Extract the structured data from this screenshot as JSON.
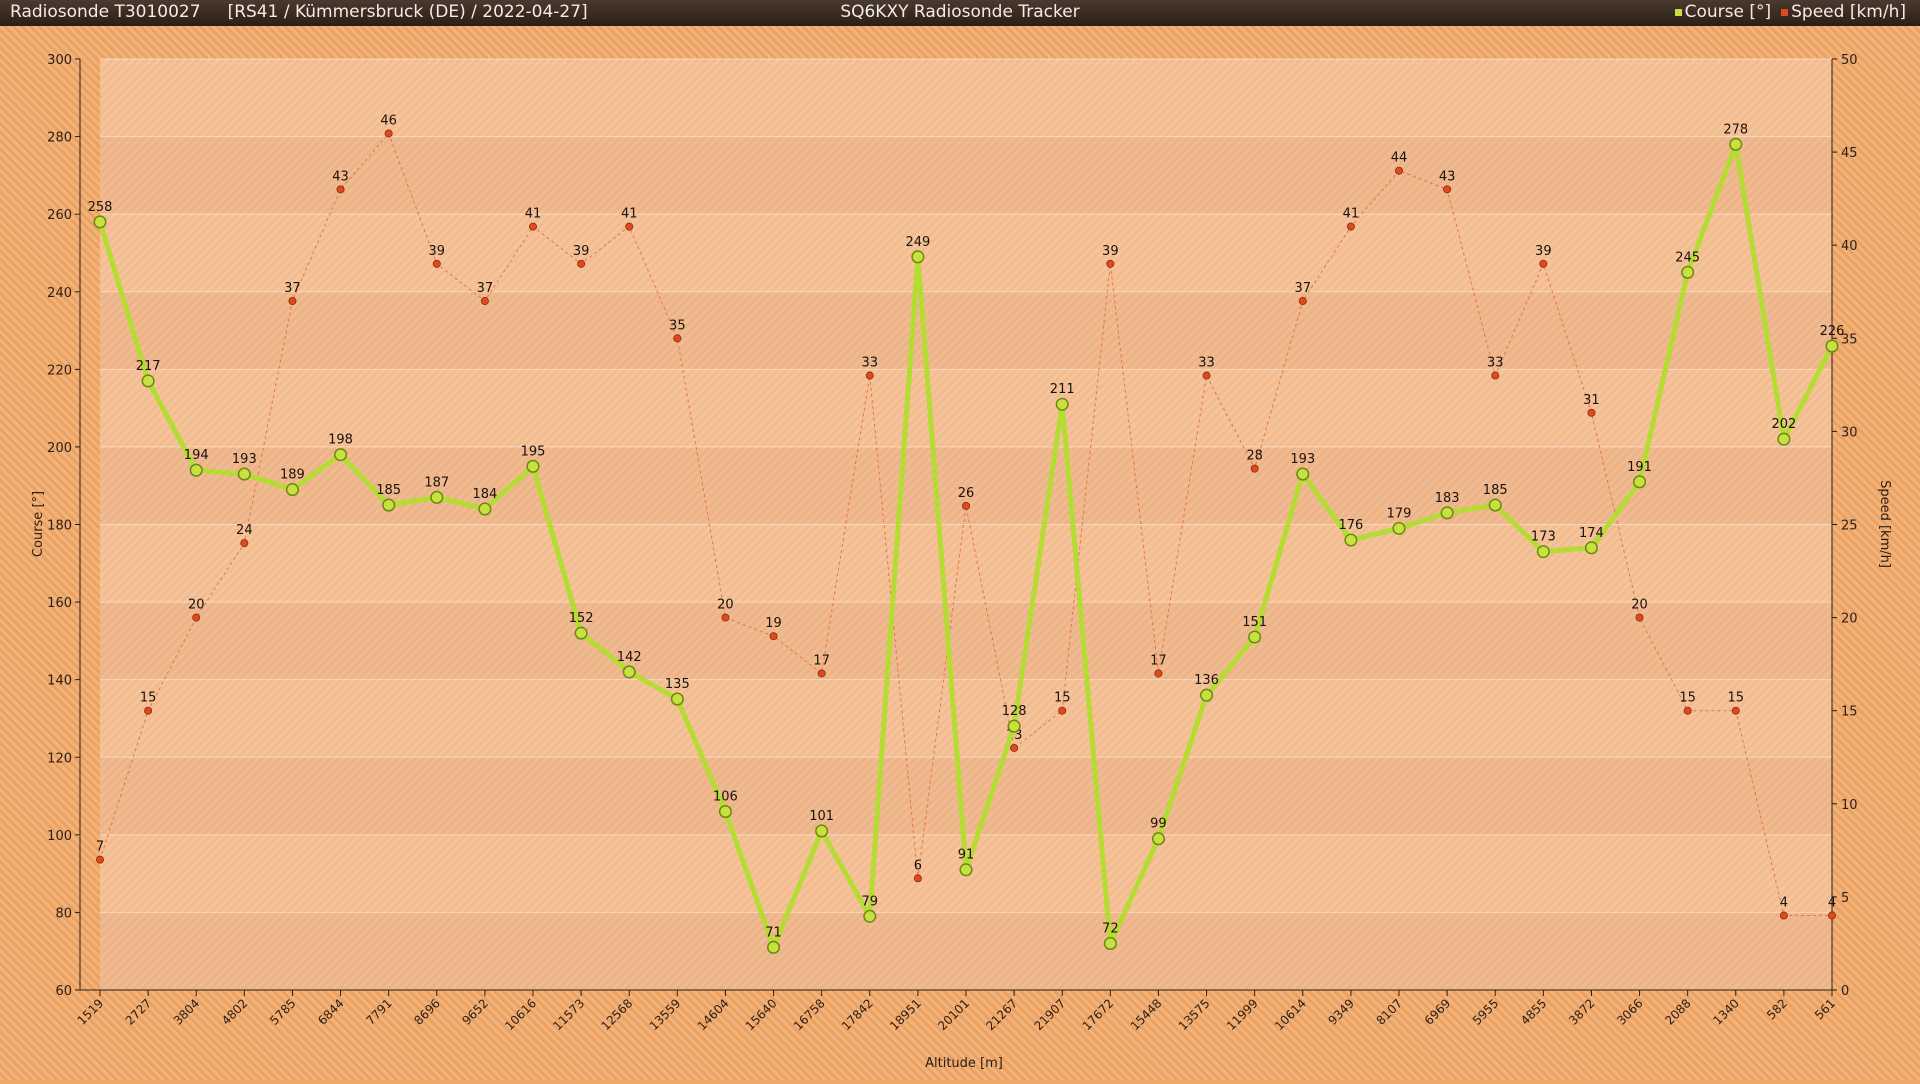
{
  "header": {
    "left_title": "Radiosonde T3010027     [RS41 / Kümmersbruck (DE) / 2022-04-27]",
    "center_title": "SQ6KXY Radiosonde Tracker"
  },
  "legend": [
    {
      "label": "Course [°]",
      "color": "#c8e040"
    },
    {
      "label": "Speed [km/h]",
      "color": "#e04a1a"
    }
  ],
  "chart_data": {
    "type": "line",
    "xlabel": "Altitude [m]",
    "ylabel": "Course [°]",
    "y2label": "Speed [km/h]",
    "ylim": [
      60,
      300
    ],
    "y2lim": [
      0,
      50
    ],
    "yticks": [
      60,
      80,
      100,
      120,
      140,
      160,
      180,
      200,
      220,
      240,
      260,
      280,
      300
    ],
    "y2ticks": [
      0,
      5,
      10,
      15,
      20,
      25,
      30,
      35,
      40,
      45,
      50
    ],
    "categories": [
      "1519",
      "2727",
      "3804",
      "4802",
      "5785",
      "6844",
      "7791",
      "8696",
      "9652",
      "10616",
      "11573",
      "12568",
      "13559",
      "14604",
      "15640",
      "16758",
      "17842",
      "18951",
      "20101",
      "21267",
      "21907",
      "17672",
      "15448",
      "13575",
      "11999",
      "10614",
      "9349",
      "8107",
      "6969",
      "5955",
      "4855",
      "3872",
      "3066",
      "2088",
      "1340",
      "582",
      "561"
    ],
    "series": [
      {
        "name": "Course [°]",
        "axis": "left",
        "color": "#b4dc32",
        "values": [
          258,
          217,
          194,
          193,
          189,
          198,
          185,
          187,
          184,
          195,
          152,
          142,
          135,
          106,
          71,
          101,
          79,
          249,
          91,
          128,
          211,
          72,
          99,
          136,
          151,
          193,
          176,
          179,
          183,
          185,
          173,
          174,
          191,
          245,
          278,
          202,
          226
        ]
      },
      {
        "name": "Speed [km/h]",
        "axis": "right",
        "color": "#e04a1a",
        "values": [
          7,
          15,
          20,
          24,
          37,
          43,
          46,
          39,
          37,
          41,
          39,
          41,
          35,
          20,
          19,
          17,
          33,
          6,
          26,
          13,
          15,
          39,
          17,
          33,
          28,
          37,
          41,
          44,
          43,
          33,
          39,
          31,
          20,
          15,
          15,
          4,
          4
        ]
      }
    ],
    "grid": true
  }
}
